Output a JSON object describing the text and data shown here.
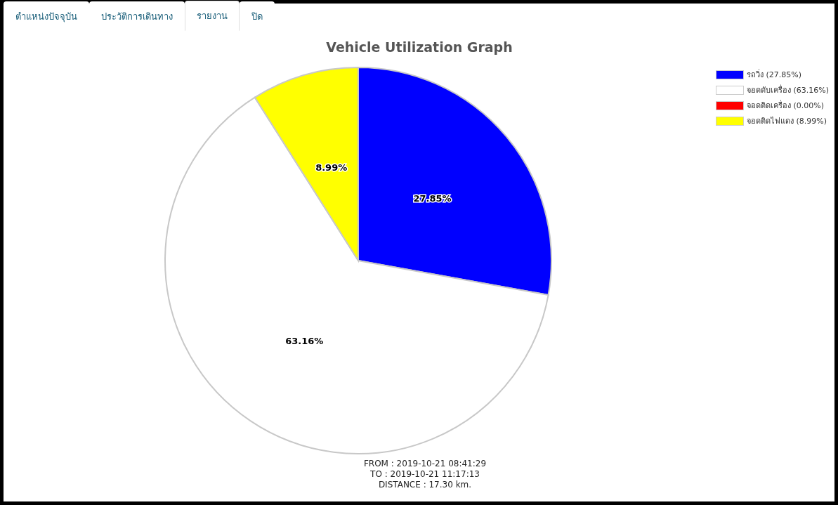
{
  "chart_data": {
    "type": "pie",
    "title": "Vehicle Utilization Graph",
    "categories": [
      "รถวิ่ง (27.85%)",
      "จอดดับเครื่อง (63.16%)",
      "จอดติดเครื่อง (0.00%)",
      "จอดติดไฟแดง (8.99%)"
    ],
    "values": [
      27.85,
      63.16,
      0,
      8.99
    ],
    "colors": [
      "#0000ff",
      "#ffffff",
      "#ff0000",
      "#ffff00"
    ],
    "value_labels": [
      "27.85%",
      "63.16%",
      null,
      "8.99%"
    ],
    "legend": "top right",
    "annotations": [
      "ตำแหน่งปัจจุบัน",
      "ประวัติการเดินทาง",
      "รายงาน",
      "ปิด",
      "FROM : 2019-10-21 08:41:29",
      "TO : 2019-10-21 11:17:13",
      "DISTANCE : 17.30 km."
    ]
  }
}
